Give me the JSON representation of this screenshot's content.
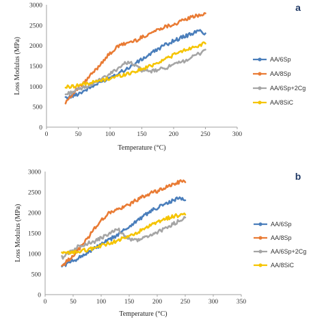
{
  "chart_data": [
    {
      "panel": "a",
      "type": "line",
      "xlabel": "Temperature (°C)",
      "ylabel": "Loss Modulus (MPa)",
      "xlim": [
        0,
        300
      ],
      "ylim": [
        0,
        3000
      ],
      "xticks": [
        0,
        50,
        100,
        150,
        200,
        250,
        300
      ],
      "yticks": [
        0,
        500,
        1000,
        1500,
        2000,
        2500,
        3000
      ],
      "grid": false,
      "legend_position": "right",
      "series": [
        {
          "name": "AA/6Sp",
          "color": "#4a7ebb",
          "x": [
            30,
            40,
            50,
            60,
            70,
            80,
            90,
            100,
            110,
            120,
            130,
            140,
            150,
            160,
            170,
            180,
            190,
            200,
            210,
            220,
            230,
            240,
            250
          ],
          "y": [
            700,
            760,
            820,
            900,
            980,
            1060,
            1140,
            1220,
            1300,
            1380,
            1460,
            1560,
            1660,
            1760,
            1860,
            1960,
            2040,
            2120,
            2180,
            2240,
            2300,
            2360,
            2300
          ]
        },
        {
          "name": "AA/8Sp",
          "color": "#e97b34",
          "x": [
            30,
            40,
            50,
            60,
            70,
            80,
            90,
            100,
            110,
            120,
            130,
            140,
            150,
            160,
            170,
            180,
            190,
            200,
            210,
            220,
            230,
            240,
            250
          ],
          "y": [
            620,
            800,
            960,
            1100,
            1280,
            1450,
            1650,
            1800,
            1950,
            2030,
            2080,
            2120,
            2200,
            2280,
            2350,
            2430,
            2480,
            2520,
            2580,
            2650,
            2700,
            2750,
            2790
          ]
        },
        {
          "name": "AA/6Sp+2Cg",
          "color": "#a5a5a5",
          "x": [
            30,
            40,
            50,
            60,
            70,
            80,
            90,
            100,
            110,
            120,
            130,
            140,
            150,
            160,
            170,
            180,
            190,
            200,
            210,
            220,
            230,
            240,
            250
          ],
          "y": [
            800,
            860,
            920,
            980,
            1050,
            1120,
            1200,
            1300,
            1420,
            1530,
            1610,
            1500,
            1400,
            1360,
            1380,
            1420,
            1470,
            1520,
            1580,
            1650,
            1720,
            1800,
            1900
          ]
        },
        {
          "name": "AA/8SiC",
          "color": "#f5c400",
          "x": [
            30,
            40,
            50,
            60,
            70,
            80,
            90,
            100,
            110,
            120,
            130,
            140,
            150,
            160,
            170,
            180,
            190,
            200,
            210,
            220,
            230,
            240,
            250
          ],
          "y": [
            980,
            1000,
            1030,
            1060,
            1090,
            1120,
            1160,
            1200,
            1240,
            1280,
            1320,
            1370,
            1420,
            1480,
            1550,
            1620,
            1700,
            1770,
            1840,
            1900,
            1960,
            2010,
            2050
          ]
        }
      ]
    },
    {
      "panel": "b",
      "type": "line",
      "xlabel": "Temperature (°C)",
      "ylabel": "Loss Modulus (MPa)",
      "xlim": [
        0,
        350
      ],
      "ylim": [
        0,
        3000
      ],
      "xticks": [
        0,
        50,
        100,
        150,
        200,
        250,
        300,
        350
      ],
      "yticks": [
        0,
        500,
        1000,
        1500,
        2000,
        2500,
        3000
      ],
      "grid": false,
      "legend_position": "right",
      "series": [
        {
          "name": "AA/6Sp",
          "color": "#4a7ebb",
          "x": [
            30,
            40,
            50,
            60,
            70,
            80,
            90,
            100,
            110,
            120,
            130,
            140,
            150,
            160,
            170,
            180,
            190,
            200,
            210,
            220,
            230,
            240,
            250
          ],
          "y": [
            700,
            760,
            820,
            900,
            980,
            1060,
            1140,
            1220,
            1300,
            1380,
            1460,
            1560,
            1660,
            1760,
            1860,
            1960,
            2040,
            2120,
            2180,
            2240,
            2300,
            2360,
            2300
          ]
        },
        {
          "name": "AA/8Sp",
          "color": "#e97b34",
          "x": [
            30,
            40,
            50,
            60,
            70,
            80,
            90,
            100,
            110,
            120,
            130,
            140,
            150,
            160,
            170,
            180,
            190,
            200,
            210,
            220,
            230,
            240,
            250
          ],
          "y": [
            700,
            820,
            960,
            1100,
            1280,
            1450,
            1650,
            1800,
            1950,
            2030,
            2080,
            2120,
            2200,
            2280,
            2350,
            2430,
            2480,
            2520,
            2580,
            2650,
            2700,
            2750,
            2740
          ]
        },
        {
          "name": "AA/6Sp+2Cg",
          "color": "#a5a5a5",
          "x": [
            30,
            40,
            50,
            60,
            70,
            80,
            90,
            100,
            110,
            120,
            130,
            140,
            150,
            160,
            170,
            180,
            190,
            200,
            210,
            220,
            230,
            240,
            250
          ],
          "y": [
            900,
            1000,
            1100,
            1180,
            1230,
            1260,
            1300,
            1380,
            1450,
            1520,
            1600,
            1450,
            1350,
            1320,
            1350,
            1400,
            1460,
            1520,
            1580,
            1650,
            1730,
            1810,
            1880
          ]
        },
        {
          "name": "AA/8SiC",
          "color": "#f5c400",
          "x": [
            30,
            40,
            50,
            60,
            70,
            80,
            90,
            100,
            110,
            120,
            130,
            140,
            150,
            160,
            170,
            180,
            190,
            200,
            210,
            220,
            230,
            240,
            250
          ],
          "y": [
            1000,
            1010,
            1030,
            1050,
            1080,
            1110,
            1150,
            1190,
            1230,
            1280,
            1320,
            1370,
            1420,
            1480,
            1550,
            1620,
            1690,
            1760,
            1820,
            1870,
            1910,
            1940,
            1950
          ]
        }
      ]
    }
  ]
}
